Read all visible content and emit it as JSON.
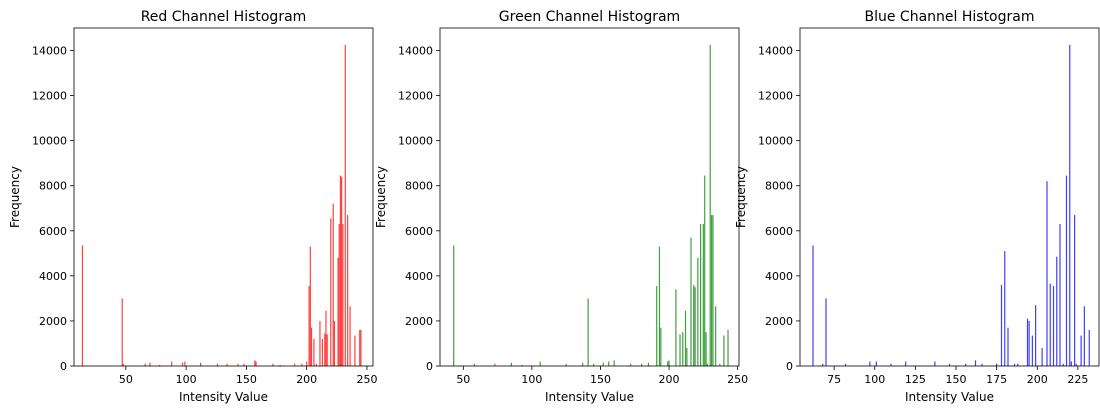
{
  "chart_data": [
    {
      "type": "bar",
      "title": "Red Channel Histogram",
      "xlabel": "Intensity Value",
      "ylabel": "Frequency",
      "color": "#ff0000",
      "xlim": [
        7,
        255
      ],
      "ylim": [
        0,
        15000
      ],
      "xticks": [
        50,
        100,
        150,
        200,
        250
      ],
      "yticks": [
        0,
        2000,
        4000,
        6000,
        8000,
        10000,
        12000,
        14000
      ],
      "x": [
        14,
        47,
        48,
        66,
        70,
        78,
        88,
        97,
        99,
        112,
        126,
        134,
        143,
        148,
        157,
        158,
        172,
        178,
        190,
        196,
        200,
        202,
        203,
        204,
        206,
        208,
        211,
        213,
        215,
        216,
        217,
        220,
        222,
        223,
        226,
        227,
        228,
        229,
        230,
        232,
        234,
        236,
        240,
        244,
        245
      ],
      "values": [
        5350,
        3000,
        100,
        100,
        150,
        50,
        200,
        150,
        200,
        150,
        100,
        100,
        100,
        100,
        250,
        200,
        100,
        50,
        100,
        100,
        200,
        3550,
        5300,
        1700,
        1200,
        100,
        2000,
        1200,
        1450,
        2450,
        1400,
        6550,
        7200,
        2000,
        4800,
        6300,
        8450,
        8400,
        6300,
        14250,
        6700,
        2650,
        1350,
        1600,
        1600
      ]
    },
    {
      "type": "bar",
      "title": "Green Channel Histogram",
      "xlabel": "Intensity Value",
      "ylabel": "Frequency",
      "color": "#008000",
      "xlim": [
        33,
        251
      ],
      "ylim": [
        0,
        15000
      ],
      "xticks": [
        50,
        100,
        150,
        200,
        250
      ],
      "yticks": [
        0,
        2000,
        4000,
        6000,
        8000,
        10000,
        12000,
        14000
      ],
      "x": [
        43,
        58,
        73,
        85,
        93,
        106,
        125,
        137,
        141,
        145,
        152,
        156,
        160,
        172,
        180,
        185,
        191,
        193,
        194,
        199,
        200,
        205,
        208,
        210,
        212,
        213,
        216,
        218,
        219,
        221,
        223,
        225,
        226,
        227,
        228,
        230,
        231,
        232,
        234,
        237,
        240,
        243
      ],
      "values": [
        5350,
        100,
        100,
        150,
        50,
        200,
        100,
        150,
        3000,
        100,
        150,
        200,
        250,
        100,
        100,
        150,
        3550,
        5300,
        1700,
        200,
        250,
        3400,
        1400,
        1500,
        2450,
        800,
        5700,
        3600,
        3500,
        4800,
        6300,
        6300,
        8450,
        1500,
        100,
        14250,
        6700,
        6700,
        2650,
        100,
        1350,
        1600
      ]
    },
    {
      "type": "bar",
      "title": "Blue Channel Histogram",
      "xlabel": "Intensity Value",
      "ylabel": "Frequency",
      "color": "#0000ff",
      "xlim": [
        54,
        238
      ],
      "ylim": [
        0,
        15000
      ],
      "xticks": [
        75,
        100,
        125,
        150,
        175,
        200,
        225
      ],
      "yticks": [
        0,
        2000,
        4000,
        6000,
        8000,
        10000,
        12000,
        14000
      ],
      "x": [
        62,
        68,
        70,
        82,
        97,
        101,
        110,
        119,
        137,
        146,
        156,
        162,
        166,
        175,
        178,
        180,
        182,
        186,
        188,
        194,
        195,
        197,
        199,
        203,
        206,
        208,
        210,
        212,
        214,
        216,
        218,
        220,
        221,
        223,
        224,
        227,
        229,
        232
      ],
      "values": [
        5350,
        100,
        3000,
        100,
        200,
        200,
        100,
        200,
        200,
        100,
        100,
        250,
        100,
        100,
        3600,
        5100,
        1700,
        100,
        100,
        2100,
        2000,
        1350,
        2700,
        800,
        8200,
        3650,
        3550,
        4850,
        6300,
        100,
        8450,
        14250,
        200,
        6700,
        100,
        1350,
        2650,
        1600
      ]
    }
  ]
}
